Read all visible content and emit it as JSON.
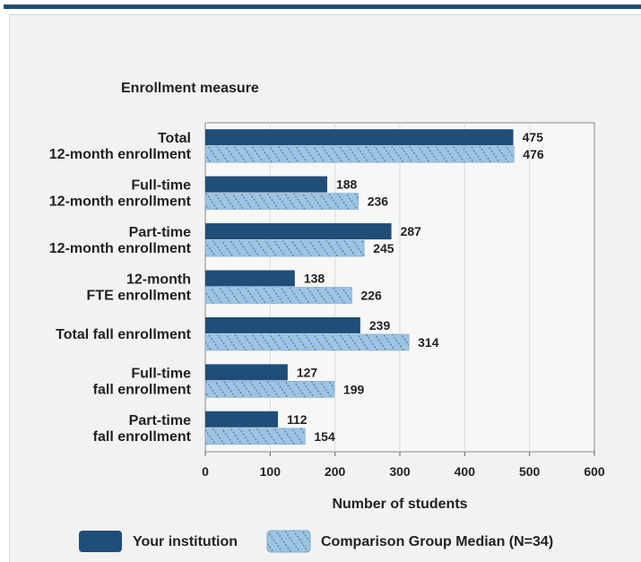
{
  "chart_data": {
    "type": "bar",
    "orientation": "horizontal",
    "ylabel": "Enrollment measure",
    "xlabel": "Number of students",
    "xlim": [
      0,
      600
    ],
    "xticks": [
      0,
      100,
      200,
      300,
      400,
      500,
      600
    ],
    "grid": true,
    "legend_placement": "bottom",
    "categories": [
      [
        "Total",
        "12-month enrollment"
      ],
      [
        "Full-time",
        "12-month enrollment"
      ],
      [
        "Part-time",
        "12-month enrollment"
      ],
      [
        "12-month",
        "FTE enrollment"
      ],
      [
        "Total fall enrollment"
      ],
      [
        "Full-time",
        "fall enrollment"
      ],
      [
        "Part-time",
        "fall enrollment"
      ]
    ],
    "series": [
      {
        "name": "Your institution",
        "color": "#1f4e79",
        "pattern": "solid",
        "values": [
          475,
          188,
          287,
          138,
          239,
          127,
          112
        ]
      },
      {
        "name": "Comparison Group Median (N=34)",
        "color": "#9dc3e6",
        "pattern": "hatched",
        "values": [
          476,
          236,
          245,
          226,
          314,
          199,
          154
        ]
      }
    ]
  }
}
